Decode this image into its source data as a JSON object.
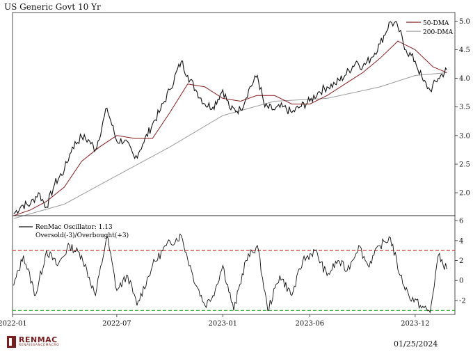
{
  "title": "US Generic Govt 10 Yr",
  "footer": {
    "date": "01/25/2024",
    "logo_name": "RENMAC",
    "logo_tagline": "RENAISSANCEMACRO"
  },
  "colors": {
    "price": "#111111",
    "dma50": "#8b1a1a",
    "dma200": "#9a9a9a",
    "oscillator": "#111111",
    "overbought": "#d62728",
    "oversold": "#2ca02c"
  },
  "chart_data": [
    {
      "type": "line",
      "title": "US Generic Govt 10 Yr",
      "x_ticks": [
        "2022-01",
        "2022-07",
        "2023-01",
        "2023-06",
        "2023-12"
      ],
      "y_ticks": [
        "2.0",
        "2.5",
        "3.0",
        "3.5",
        "4.0",
        "4.5",
        "5.0"
      ],
      "ylim": [
        1.6,
        5.15
      ],
      "y_axis_side": "right",
      "legend": "top-right",
      "series": [
        {
          "name": "",
          "points": [
            [
              "2022-01-03",
              1.63
            ],
            [
              "2022-01-17",
              1.78
            ],
            [
              "2022-02-01",
              1.8
            ],
            [
              "2022-02-15",
              2.0
            ],
            [
              "2022-03-01",
              1.75
            ],
            [
              "2022-03-15",
              2.15
            ],
            [
              "2022-04-01",
              2.4
            ],
            [
              "2022-04-15",
              2.8
            ],
            [
              "2022-05-01",
              2.98
            ],
            [
              "2022-05-15",
              2.9
            ],
            [
              "2022-05-25",
              2.75
            ],
            [
              "2022-06-14",
              3.48
            ],
            [
              "2022-07-01",
              2.9
            ],
            [
              "2022-07-15",
              2.92
            ],
            [
              "2022-08-01",
              2.6
            ],
            [
              "2022-08-15",
              2.85
            ],
            [
              "2022-09-01",
              3.2
            ],
            [
              "2022-09-15",
              3.45
            ],
            [
              "2022-10-01",
              3.8
            ],
            [
              "2022-10-21",
              4.3
            ],
            [
              "2022-11-01",
              4.05
            ],
            [
              "2022-11-15",
              3.8
            ],
            [
              "2022-12-01",
              3.55
            ],
            [
              "2022-12-15",
              3.5
            ],
            [
              "2023-01-01",
              3.8
            ],
            [
              "2023-01-15",
              3.45
            ],
            [
              "2023-02-01",
              3.45
            ],
            [
              "2023-02-15",
              3.8
            ],
            [
              "2023-03-02",
              4.05
            ],
            [
              "2023-03-15",
              3.5
            ],
            [
              "2023-04-01",
              3.45
            ],
            [
              "2023-04-15",
              3.5
            ],
            [
              "2023-05-01",
              3.4
            ],
            [
              "2023-05-15",
              3.5
            ],
            [
              "2023-06-01",
              3.6
            ],
            [
              "2023-06-15",
              3.75
            ],
            [
              "2023-07-01",
              3.85
            ],
            [
              "2023-07-15",
              3.9
            ],
            [
              "2023-08-01",
              4.05
            ],
            [
              "2023-08-21",
              4.3
            ],
            [
              "2023-09-01",
              4.2
            ],
            [
              "2023-09-15",
              4.35
            ],
            [
              "2023-10-01",
              4.6
            ],
            [
              "2023-10-19",
              4.99
            ],
            [
              "2023-11-01",
              4.9
            ],
            [
              "2023-11-15",
              4.5
            ],
            [
              "2023-12-01",
              4.3
            ],
            [
              "2023-12-15",
              3.95
            ],
            [
              "2023-12-27",
              3.79
            ],
            [
              "2024-01-10",
              4.0
            ],
            [
              "2024-01-25",
              4.15
            ]
          ]
        },
        {
          "name": "50-DMA",
          "points": [
            [
              "2022-01-03",
              1.6
            ],
            [
              "2022-02-01",
              1.7
            ],
            [
              "2022-03-01",
              1.85
            ],
            [
              "2022-04-01",
              2.1
            ],
            [
              "2022-05-01",
              2.55
            ],
            [
              "2022-06-01",
              2.8
            ],
            [
              "2022-07-01",
              3.0
            ],
            [
              "2022-08-01",
              2.95
            ],
            [
              "2022-09-01",
              2.95
            ],
            [
              "2022-10-01",
              3.4
            ],
            [
              "2022-11-01",
              3.9
            ],
            [
              "2022-12-01",
              3.85
            ],
            [
              "2023-01-01",
              3.65
            ],
            [
              "2023-02-01",
              3.6
            ],
            [
              "2023-03-01",
              3.7
            ],
            [
              "2023-04-01",
              3.7
            ],
            [
              "2023-05-01",
              3.55
            ],
            [
              "2023-06-01",
              3.55
            ],
            [
              "2023-07-01",
              3.7
            ],
            [
              "2023-08-01",
              3.9
            ],
            [
              "2023-09-01",
              4.1
            ],
            [
              "2023-10-01",
              4.35
            ],
            [
              "2023-11-01",
              4.65
            ],
            [
              "2023-12-01",
              4.5
            ],
            [
              "2024-01-01",
              4.2
            ],
            [
              "2024-01-25",
              4.1
            ]
          ]
        },
        {
          "name": "200-DMA",
          "points": [
            [
              "2022-01-03",
              1.55
            ],
            [
              "2022-04-01",
              1.8
            ],
            [
              "2022-07-01",
              2.3
            ],
            [
              "2022-10-01",
              2.8
            ],
            [
              "2023-01-01",
              3.35
            ],
            [
              "2023-04-01",
              3.6
            ],
            [
              "2023-07-01",
              3.65
            ],
            [
              "2023-10-01",
              3.85
            ],
            [
              "2023-12-01",
              4.05
            ],
            [
              "2024-01-25",
              4.1
            ]
          ]
        }
      ]
    },
    {
      "type": "line",
      "x_ticks": [
        "2022-01",
        "2022-07",
        "2023-01",
        "2023-06",
        "2023-12"
      ],
      "y_ticks": [
        "-2",
        "0",
        "2",
        "4",
        "6"
      ],
      "ylim": [
        -3.4,
        6.5
      ],
      "y_axis_side": "right",
      "legend": "top-left",
      "reference_lines": [
        {
          "name": "Overbought",
          "value": 3
        },
        {
          "name": "Oversold",
          "value": -3
        }
      ],
      "series": [
        {
          "name": "RenMac Oscillator: 1.13",
          "points": [
            [
              "2022-01-03",
              -0.5
            ],
            [
              "2022-01-20",
              2.5
            ],
            [
              "2022-02-10",
              -1.5
            ],
            [
              "2022-03-01",
              3.0
            ],
            [
              "2022-03-20",
              1.5
            ],
            [
              "2022-04-10",
              3.5
            ],
            [
              "2022-05-01",
              2.5
            ],
            [
              "2022-05-25",
              -1.5
            ],
            [
              "2022-06-14",
              4.5
            ],
            [
              "2022-07-01",
              -1.0
            ],
            [
              "2022-07-20",
              0.5
            ],
            [
              "2022-08-05",
              -2.5
            ],
            [
              "2022-09-01",
              1.5
            ],
            [
              "2022-09-25",
              3.5
            ],
            [
              "2022-10-21",
              4.5
            ],
            [
              "2022-11-10",
              0.5
            ],
            [
              "2022-12-01",
              -2.5
            ],
            [
              "2022-12-15",
              -1.5
            ],
            [
              "2023-01-01",
              1.5
            ],
            [
              "2023-01-20",
              -3.0
            ],
            [
              "2023-02-10",
              2.0
            ],
            [
              "2023-03-02",
              3.5
            ],
            [
              "2023-03-20",
              -3.0
            ],
            [
              "2023-04-10",
              0.5
            ],
            [
              "2023-05-01",
              -1.5
            ],
            [
              "2023-05-20",
              2.0
            ],
            [
              "2023-06-10",
              3.0
            ],
            [
              "2023-07-01",
              0.5
            ],
            [
              "2023-07-20",
              2.0
            ],
            [
              "2023-08-05",
              1.0
            ],
            [
              "2023-08-25",
              3.5
            ],
            [
              "2023-09-10",
              1.5
            ],
            [
              "2023-10-01",
              3.5
            ],
            [
              "2023-10-19",
              4.3
            ],
            [
              "2023-11-05",
              0.5
            ],
            [
              "2023-11-20",
              -1.5
            ],
            [
              "2023-12-10",
              -2.5
            ],
            [
              "2023-12-27",
              -3.2
            ],
            [
              "2024-01-10",
              2.5
            ],
            [
              "2024-01-25",
              1.13
            ]
          ]
        }
      ]
    }
  ],
  "legend_labels": {
    "dma50": "50-DMA",
    "dma200": "200-DMA",
    "oscillator": "RenMac Oscillator: 1.13",
    "oscillator_note": "Oversold(-3)/Overbought(+3)"
  }
}
